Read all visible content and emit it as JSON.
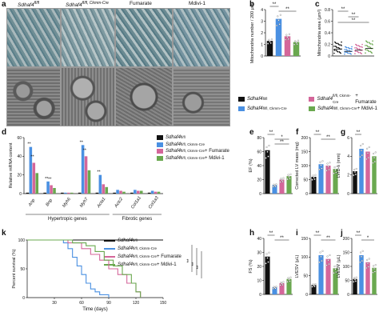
{
  "panel_letters": [
    "a",
    "b",
    "c",
    "d",
    "e",
    "f",
    "g",
    "h",
    "i",
    "j",
    "k"
  ],
  "microscopy": {
    "columns": [
      "Sdhaf4 fl/fl",
      "Sdhaf4 fl/fl, Ckmm-Cre",
      "Fumarate",
      "Mdivi-1"
    ],
    "col_label_main": [
      "Sdhaf4",
      "Sdhaf4",
      "Fumarate",
      "Mdivi-1"
    ],
    "col_label_sup": [
      "fl/fl",
      "fl/fl, Ckmm-Cre",
      "",
      ""
    ]
  },
  "legend": {
    "entries": [
      {
        "main": "Sdhaf4",
        "sup": "fl/fl",
        "suffix": "",
        "color": "#111111"
      },
      {
        "main": "Sdhaf4",
        "sup": "fl/fl, Ckmm-Cre",
        "suffix": "",
        "color": "#4a90e2"
      },
      {
        "main": "Sdhaf4",
        "sup": "fl/fl, Ckmm-Cre",
        "suffix": " + Fumarate",
        "color": "#d4669a"
      },
      {
        "main": "Sdhaf4",
        "sup": "fl/fl, Ckmm-Cre",
        "suffix": " + Mdivi-1",
        "color": "#6aa84f"
      }
    ]
  },
  "colors": {
    "ctrl": "#111111",
    "ko": "#4a90e2",
    "fum": "#d4669a",
    "mdivi": "#6aa84f"
  },
  "chart_data": [
    {
      "id": "b",
      "type": "bar",
      "ylabel": "Mitochondria number / 200 μm²",
      "ylim": [
        0,
        4
      ],
      "yticks": [
        "0",
        "1",
        "2",
        "3",
        "4"
      ],
      "values": [
        1.3,
        3.2,
        1.7,
        1.2
      ],
      "sig": [
        "**",
        "**"
      ]
    },
    {
      "id": "c",
      "type": "scatter",
      "ylabel": "Mitochondria area (μm²)",
      "ylim": [
        0,
        0.8
      ],
      "yticks": [
        "0",
        "0.2",
        "0.4",
        "0.6",
        "0.8"
      ],
      "values": [
        0.12,
        0.08,
        0.1,
        0.13
      ],
      "sig": [
        "**",
        "**",
        "**"
      ]
    },
    {
      "id": "d",
      "type": "bar",
      "ylabel": "Relative mRNA content",
      "ylim": [
        0,
        60
      ],
      "yticks": [
        "0",
        "20",
        "40",
        "60"
      ],
      "categories": [
        "Anp",
        "Bnp",
        "Myh6",
        "Myh7",
        "Acta1",
        "Actc2",
        "Col1a1",
        "Col1a3"
      ],
      "series": [
        {
          "name": "Sdhaf4 fl/fl",
          "values": [
            1,
            1,
            1,
            1,
            1,
            1,
            1,
            1
          ]
        },
        {
          "name": "Sdhaf4 fl/fl, Ckmm-Cre",
          "values": [
            50,
            13,
            1,
            52,
            20,
            4,
            4,
            3
          ]
        },
        {
          "name": "Sdhaf4 fl/fl, Ckmm-Cre + Fumarate",
          "values": [
            33,
            9,
            1,
            40,
            10,
            3,
            3,
            2
          ]
        },
        {
          "name": "Sdhaf4 fl/fl, Ckmm-Cre + Mdivi-1",
          "values": [
            22,
            6,
            1,
            25,
            7,
            2,
            3,
            2
          ]
        }
      ],
      "group_labels": [
        "Hypertropic genes",
        "Fibrotic genes"
      ],
      "sig": [
        "**",
        "**",
        "**",
        "**",
        "**",
        "**",
        "**"
      ]
    },
    {
      "id": "e",
      "type": "bar",
      "ylabel": "EF (%)",
      "ylim": [
        0,
        80
      ],
      "yticks": [
        "0",
        "20",
        "40",
        "60",
        "80"
      ],
      "values": [
        62,
        12,
        20,
        25
      ],
      "sig": [
        "**",
        "*",
        "**"
      ]
    },
    {
      "id": "f",
      "type": "bar",
      "ylabel": "Corrected LV mass (mg)",
      "ylim": [
        0,
        200
      ],
      "yticks": [
        "0",
        "50",
        "100",
        "150",
        "200"
      ],
      "values": [
        60,
        105,
        100,
        88
      ],
      "sig": [
        "**",
        "**"
      ]
    },
    {
      "id": "g",
      "type": "bar",
      "ylabel": "LVID-s (mm)",
      "ylim": [
        0,
        6
      ],
      "yticks": [
        "0",
        "2",
        "4",
        "6"
      ],
      "values": [
        2.4,
        4.8,
        4.5,
        4.0
      ],
      "sig": [
        "**"
      ]
    },
    {
      "id": "h",
      "type": "bar",
      "ylabel": "FS (%)",
      "ylim": [
        0,
        40
      ],
      "yticks": [
        "0",
        "10",
        "20",
        "30",
        "40"
      ],
      "values": [
        27,
        5,
        8,
        11
      ],
      "sig": [
        "**",
        "**"
      ]
    },
    {
      "id": "i",
      "type": "bar",
      "ylabel": "LVESV (μL)",
      "ylim": [
        0,
        150
      ],
      "yticks": [
        "0",
        "50",
        "100",
        "150"
      ],
      "values": [
        25,
        105,
        95,
        70
      ],
      "sig": [
        "**",
        "**"
      ]
    },
    {
      "id": "j",
      "type": "bar",
      "ylabel": "LVEDV (μL)",
      "ylim": [
        0,
        200
      ],
      "yticks": [
        "0",
        "50",
        "100",
        "150",
        "200"
      ],
      "values": [
        55,
        140,
        115,
        95
      ],
      "sig": [
        "**",
        "*"
      ]
    },
    {
      "id": "k",
      "type": "line",
      "xlabel": "Time (days)",
      "ylabel": "Percent survival (%)",
      "xlim": [
        0,
        150
      ],
      "ylim": [
        0,
        100
      ],
      "xticks": [
        "30",
        "60",
        "90",
        "120",
        "150"
      ],
      "yticks": [
        "0",
        "50",
        "100"
      ],
      "series": [
        {
          "name": "Sdhaf4 fl/fl",
          "x": [
            0,
            150
          ],
          "y": [
            100,
            100
          ]
        },
        {
          "name": "Sdhaf4 fl/fl, Ckmm-Cre",
          "x": [
            0,
            40,
            45,
            50,
            55,
            60,
            65,
            70,
            75,
            80,
            90
          ],
          "y": [
            100,
            95,
            85,
            70,
            55,
            40,
            25,
            15,
            10,
            5,
            0
          ]
        },
        {
          "name": "Sdhaf4 fl/fl, Ckmm-Cre + Fumarate",
          "x": [
            0,
            45,
            60,
            70,
            80,
            90,
            100,
            110,
            120,
            125
          ],
          "y": [
            100,
            95,
            85,
            75,
            65,
            50,
            40,
            25,
            10,
            0
          ]
        },
        {
          "name": "Sdhaf4 fl/fl, Ckmm-Cre + Mdivi-1",
          "x": [
            0,
            50,
            65,
            75,
            85,
            95,
            105,
            115,
            120,
            125
          ],
          "y": [
            100,
            95,
            90,
            80,
            65,
            55,
            40,
            25,
            10,
            0
          ]
        }
      ],
      "sig": [
        "**",
        "**",
        "**"
      ]
    }
  ]
}
